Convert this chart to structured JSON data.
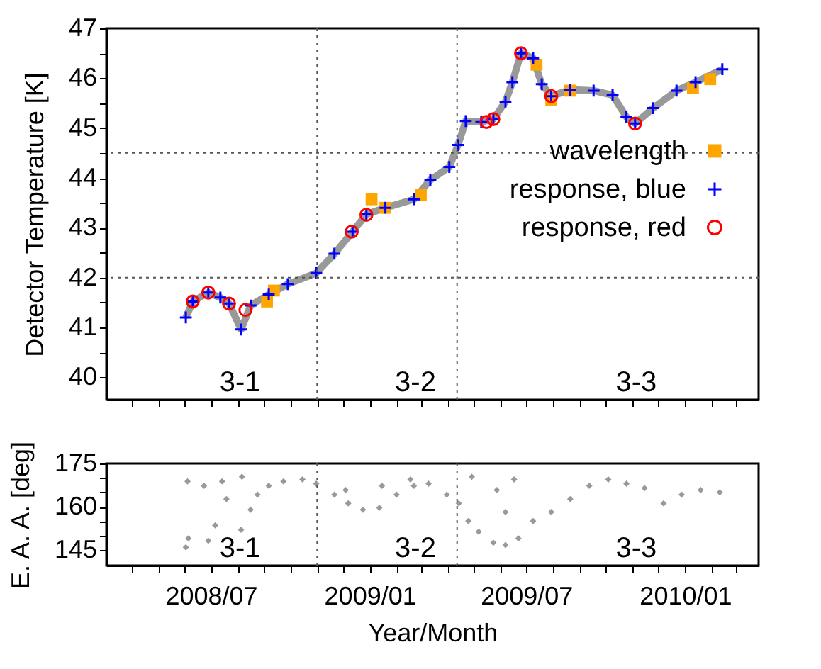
{
  "chart_data": [
    {
      "type": "line",
      "ylabel": "Detector Temperature [K]",
      "xlim": [
        "2008-03-02",
        "2010-03-27"
      ],
      "ylim": [
        39.55,
        47
      ],
      "xticks": [
        {
          "value": "2008-04-01",
          "label": null
        },
        {
          "value": "2008-05-01",
          "label": null
        },
        {
          "value": "2008-06-01",
          "label": null
        },
        {
          "value": "2008-07-01",
          "label": null
        },
        {
          "value": "2008-08-01",
          "label": null
        },
        {
          "value": "2008-09-01",
          "label": null
        },
        {
          "value": "2008-10-01",
          "label": null
        },
        {
          "value": "2008-11-01",
          "label": null
        },
        {
          "value": "2008-12-01",
          "label": null
        },
        {
          "value": "2009-01-01",
          "label": null
        },
        {
          "value": "2009-02-01",
          "label": null
        },
        {
          "value": "2009-03-01",
          "label": null
        },
        {
          "value": "2009-04-01",
          "label": null
        },
        {
          "value": "2009-05-01",
          "label": null
        },
        {
          "value": "2009-06-01",
          "label": null
        },
        {
          "value": "2009-07-01",
          "label": null
        },
        {
          "value": "2009-08-01",
          "label": null
        },
        {
          "value": "2009-09-01",
          "label": null
        },
        {
          "value": "2009-10-01",
          "label": null
        },
        {
          "value": "2009-11-01",
          "label": null
        },
        {
          "value": "2009-12-01",
          "label": null
        },
        {
          "value": "2010-01-01",
          "label": null
        },
        {
          "value": "2010-02-01",
          "label": null
        },
        {
          "value": "2010-03-01",
          "label": null
        }
      ],
      "yticks": [
        40,
        {
          "value": 40.5,
          "label": null
        },
        41,
        {
          "value": 41.5,
          "label": null
        },
        42,
        {
          "value": 42.5,
          "label": null
        },
        43,
        {
          "value": 43.5,
          "label": null
        },
        44,
        {
          "value": 44.5,
          "label": null
        },
        45,
        {
          "value": 45.5,
          "label": null
        },
        46,
        {
          "value": 46.5,
          "label": null
        },
        47
      ],
      "tick_labels": "y",
      "grid": false,
      "legend": "right",
      "ref_lines": [
        {
          "axis": "x",
          "value": "2008-11-01",
          "line_style": "dotted"
        },
        {
          "axis": "x",
          "value": "2009-04-12",
          "line_style": "dotted"
        },
        {
          "axis": "y",
          "value": 42,
          "line_style": "dotted"
        },
        {
          "axis": "y",
          "value": 44.5,
          "line_style": "dotted"
        }
      ],
      "annotations": [
        "3-1",
        "3-2",
        "3-3"
      ],
      "series": [
        {
          "type": "line",
          "color": "#999999",
          "x": [
            "2008-06-02",
            "2008-06-10",
            "2008-06-28",
            "2008-07-12",
            "2008-07-22",
            "2008-08-05",
            "2008-08-16",
            "2008-09-06",
            "2008-09-28",
            "2008-10-31",
            "2008-11-21",
            "2008-12-12",
            "2008-12-28",
            "2009-01-19",
            "2009-02-21",
            "2009-03-12",
            "2009-04-03",
            "2009-04-13",
            "2009-04-22",
            "2009-05-10",
            "2009-05-24",
            "2009-06-07",
            "2009-06-15",
            "2009-06-25",
            "2009-07-09",
            "2009-07-19",
            "2009-07-30",
            "2009-08-21",
            "2009-09-17",
            "2009-10-09",
            "2009-10-25",
            "2009-11-04",
            "2009-11-25",
            "2009-12-22",
            "2010-01-13",
            "2010-02-13"
          ],
          "values": [
            41.2,
            41.52,
            41.7,
            41.6,
            41.48,
            40.96,
            41.44,
            41.66,
            41.87,
            42.09,
            42.48,
            42.92,
            43.27,
            43.4,
            43.57,
            43.96,
            44.22,
            44.66,
            45.14,
            45.12,
            45.18,
            45.53,
            45.92,
            46.5,
            46.4,
            45.88,
            45.64,
            45.77,
            45.75,
            45.66,
            45.22,
            45.09,
            45.4,
            45.75,
            45.92,
            46.18
          ]
        },
        {
          "type": "scatter",
          "name": "wavelength",
          "marker": "square",
          "color": "#ffa500",
          "x": [
            "2008-09-04",
            "2008-09-12",
            "2009-01-03",
            "2009-01-19",
            "2009-03-01",
            "2009-07-13",
            "2009-07-30",
            "2009-08-21",
            "2010-01-10",
            "2010-01-30"
          ],
          "values": [
            41.52,
            41.74,
            43.57,
            43.4,
            43.66,
            46.27,
            45.57,
            45.75,
            45.8,
            45.98
          ]
        },
        {
          "type": "scatter",
          "name": "response, blue",
          "marker": "cross",
          "color": "#0000ff",
          "x": [
            "2008-06-02",
            "2008-06-10",
            "2008-06-28",
            "2008-07-12",
            "2008-07-22",
            "2008-08-05",
            "2008-08-16",
            "2008-09-06",
            "2008-09-28",
            "2008-10-31",
            "2008-11-21",
            "2008-12-12",
            "2008-12-28",
            "2009-01-19",
            "2009-02-21",
            "2009-03-12",
            "2009-04-03",
            "2009-04-13",
            "2009-04-22",
            "2009-05-10",
            "2009-05-24",
            "2009-06-07",
            "2009-06-15",
            "2009-06-25",
            "2009-07-09",
            "2009-07-19",
            "2009-07-30",
            "2009-08-21",
            "2009-09-17",
            "2009-10-09",
            "2009-10-25",
            "2009-11-04",
            "2009-11-25",
            "2009-12-22",
            "2010-01-13",
            "2010-02-13"
          ],
          "values": [
            41.2,
            41.52,
            41.7,
            41.6,
            41.48,
            40.96,
            41.44,
            41.66,
            41.87,
            42.09,
            42.48,
            42.92,
            43.27,
            43.4,
            43.57,
            43.96,
            44.22,
            44.66,
            45.14,
            45.12,
            45.18,
            45.53,
            45.92,
            46.5,
            46.4,
            45.88,
            45.64,
            45.77,
            45.75,
            45.66,
            45.22,
            45.09,
            45.4,
            45.75,
            45.92,
            46.18
          ]
        },
        {
          "type": "scatter",
          "name": "response, red",
          "marker": "circle",
          "color": "#ff0000",
          "x": [
            "2008-06-10",
            "2008-06-28",
            "2008-07-22",
            "2008-08-10",
            "2008-12-11",
            "2008-12-28",
            "2009-05-16",
            "2009-05-24",
            "2009-06-25",
            "2009-07-30",
            "2009-11-04"
          ],
          "values": [
            41.52,
            41.7,
            41.48,
            41.35,
            42.92,
            43.26,
            45.12,
            45.18,
            46.5,
            45.64,
            45.09
          ]
        }
      ]
    },
    {
      "type": "scatter",
      "ylabel": "E. A. A. [deg]",
      "xlabel": "Year/Month",
      "xlim": [
        "2008-03-02",
        "2010-03-27"
      ],
      "ylim": [
        139.7,
        175
      ],
      "xticks": [
        {
          "value": "2008-04-01",
          "label": null
        },
        {
          "value": "2008-05-01",
          "label": null
        },
        {
          "value": "2008-06-01",
          "label": null
        },
        {
          "value": "2008-07-01",
          "label": "2008/07"
        },
        {
          "value": "2008-08-01",
          "label": null
        },
        {
          "value": "2008-09-01",
          "label": null
        },
        {
          "value": "2008-10-01",
          "label": null
        },
        {
          "value": "2008-11-01",
          "label": null
        },
        {
          "value": "2008-12-01",
          "label": null
        },
        {
          "value": "2009-01-01",
          "label": "2009/01"
        },
        {
          "value": "2009-02-01",
          "label": null
        },
        {
          "value": "2009-03-01",
          "label": null
        },
        {
          "value": "2009-04-01",
          "label": null
        },
        {
          "value": "2009-05-01",
          "label": null
        },
        {
          "value": "2009-06-01",
          "label": null
        },
        {
          "value": "2009-07-01",
          "label": "2009/07"
        },
        {
          "value": "2009-08-01",
          "label": null
        },
        {
          "value": "2009-09-01",
          "label": null
        },
        {
          "value": "2009-10-01",
          "label": null
        },
        {
          "value": "2009-11-01",
          "label": null
        },
        {
          "value": "2009-12-01",
          "label": null
        },
        {
          "value": "2010-01-01",
          "label": "2010/01"
        },
        {
          "value": "2010-02-01",
          "label": null
        },
        {
          "value": "2010-03-01",
          "label": null
        }
      ],
      "yticks": [
        145,
        {
          "value": 150,
          "label": null
        },
        {
          "value": 155,
          "label": null
        },
        160,
        {
          "value": 165,
          "label": null
        },
        {
          "value": 170,
          "label": null
        },
        175
      ],
      "grid": false,
      "marker": "diamond",
      "color": "#999999",
      "ref_lines": [
        {
          "axis": "x",
          "value": "2008-11-01",
          "line_style": "dotted"
        },
        {
          "axis": "x",
          "value": "2009-04-12",
          "line_style": "dotted"
        }
      ],
      "annotations": [
        "3-1",
        "3-2",
        "3-3"
      ],
      "x": [
        "2008-06-02",
        "2008-06-04",
        "2008-06-05",
        "2008-06-23",
        "2008-06-28",
        "2008-07-06",
        "2008-07-14",
        "2008-07-19",
        "2008-08-05",
        "2008-08-06",
        "2008-08-16",
        "2008-08-24",
        "2008-09-06",
        "2008-09-23",
        "2008-10-15",
        "2008-10-31",
        "2008-11-21",
        "2008-12-04",
        "2008-12-07",
        "2008-12-24",
        "2009-01-12",
        "2009-01-15",
        "2009-02-01",
        "2009-02-17",
        "2009-02-21",
        "2009-03-10",
        "2009-03-31",
        "2009-04-14",
        "2009-04-25",
        "2009-04-29",
        "2009-05-07",
        "2009-05-24",
        "2009-05-28",
        "2009-06-07",
        "2009-06-07",
        "2009-06-17",
        "2009-06-22",
        "2009-07-09",
        "2009-07-30",
        "2009-08-21",
        "2009-09-12",
        "2009-10-04",
        "2009-10-25",
        "2009-11-15",
        "2009-12-07",
        "2009-12-28",
        "2010-01-19",
        "2010-02-10"
      ],
      "values": [
        146,
        168.8,
        149.1,
        167.3,
        148.3,
        153.6,
        168.8,
        162.7,
        152.1,
        170.4,
        159,
        164.2,
        167.3,
        168.8,
        169.5,
        168,
        164.2,
        165.8,
        161.2,
        159,
        159.7,
        167.3,
        164.2,
        169.5,
        167.3,
        168,
        164.2,
        161.2,
        155.1,
        170.4,
        151.4,
        147.6,
        165.8,
        146.8,
        158.2,
        169.5,
        149.1,
        155.1,
        158.2,
        162.7,
        167.3,
        169.5,
        168,
        166.5,
        161.2,
        164.2,
        165.8,
        165
      ]
    }
  ]
}
